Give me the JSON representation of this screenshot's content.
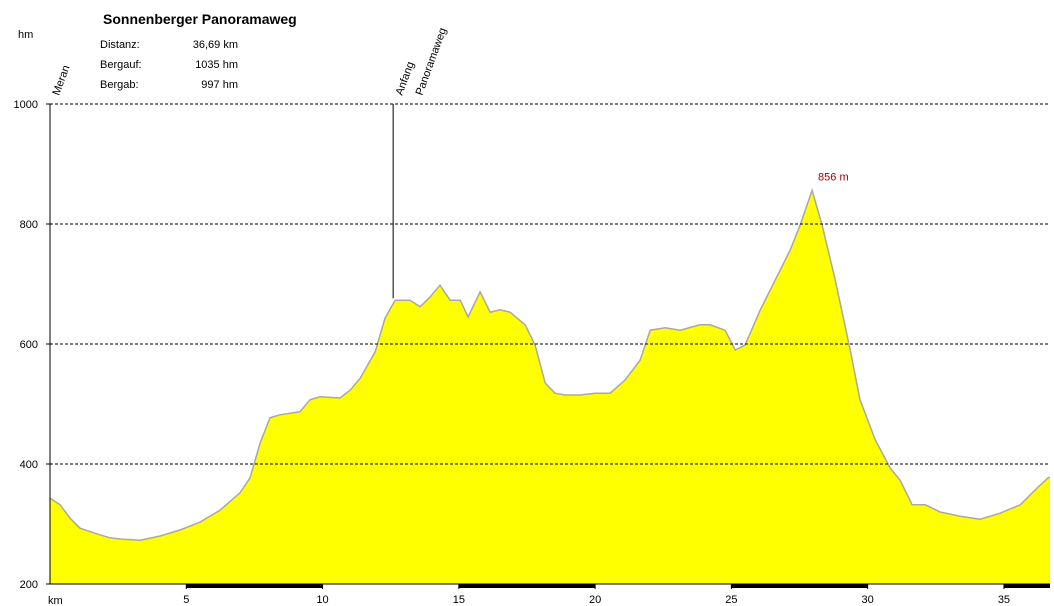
{
  "chart_data": {
    "type": "area",
    "title": "Sonnenberger Panoramaweg",
    "y_label": "hm",
    "x_label": "km",
    "info": [
      [
        "Distanz:",
        "36,69 km"
      ],
      [
        "Bergauf:",
        "1035 hm"
      ],
      [
        "Bergab:",
        "997 hm"
      ]
    ],
    "xlim": [
      0,
      36.69
    ],
    "ylim": [
      200,
      1000
    ],
    "xticks": [
      5,
      10,
      15,
      20,
      25,
      30,
      35
    ],
    "yticks": [
      200,
      400,
      600,
      800,
      1000
    ],
    "grid": true,
    "fill": "#ffff00",
    "line_color": "#a8a8a8",
    "x": [
      0,
      0.37,
      0.73,
      1.1,
      1.83,
      2.2,
      2.57,
      3.3,
      4.04,
      4.77,
      5.5,
      6.24,
      6.97,
      7.34,
      7.71,
      8.07,
      8.44,
      9.17,
      9.54,
      9.91,
      10.64,
      11.01,
      11.38,
      11.93,
      12.29,
      12.66,
      13.21,
      13.58,
      13.94,
      14.31,
      14.68,
      15.05,
      15.34,
      15.78,
      16.15,
      16.51,
      16.88,
      17.43,
      17.8,
      18.17,
      18.53,
      18.9,
      19.45,
      20.0,
      20.55,
      21.1,
      21.65,
      22.02,
      22.57,
      23.12,
      23.85,
      24.22,
      24.77,
      25.14,
      25.5,
      26.06,
      26.61,
      27.16,
      27.52,
      27.96,
      28.33,
      28.81,
      29.36,
      29.72,
      30.28,
      30.83,
      31.19,
      31.63,
      32.11,
      32.66,
      33.39,
      34.13,
      34.86,
      35.6,
      36.15,
      36.62,
      36.69
    ],
    "values": [
      343,
      332,
      310,
      293,
      282,
      277,
      275,
      273,
      280,
      290,
      303,
      323,
      352,
      377,
      435,
      477,
      482,
      487,
      507,
      512,
      510,
      523,
      543,
      587,
      643,
      673,
      673,
      662,
      678,
      698,
      673,
      673,
      645,
      687,
      653,
      657,
      653,
      632,
      598,
      535,
      518,
      515,
      515,
      518,
      518,
      540,
      573,
      623,
      627,
      623,
      632,
      632,
      623,
      590,
      598,
      657,
      707,
      757,
      798,
      856,
      798,
      707,
      590,
      507,
      440,
      393,
      373,
      332,
      332,
      320,
      313,
      308,
      318,
      332,
      357,
      377,
      378
    ],
    "peak": {
      "x": 27.96,
      "value": 856,
      "label": "856 m"
    },
    "markers": [
      {
        "x": 0,
        "label": [
          "Meran"
        ]
      },
      {
        "x": 12.59,
        "label": [
          "Anfang",
          "Panoramaweg"
        ]
      }
    ]
  }
}
